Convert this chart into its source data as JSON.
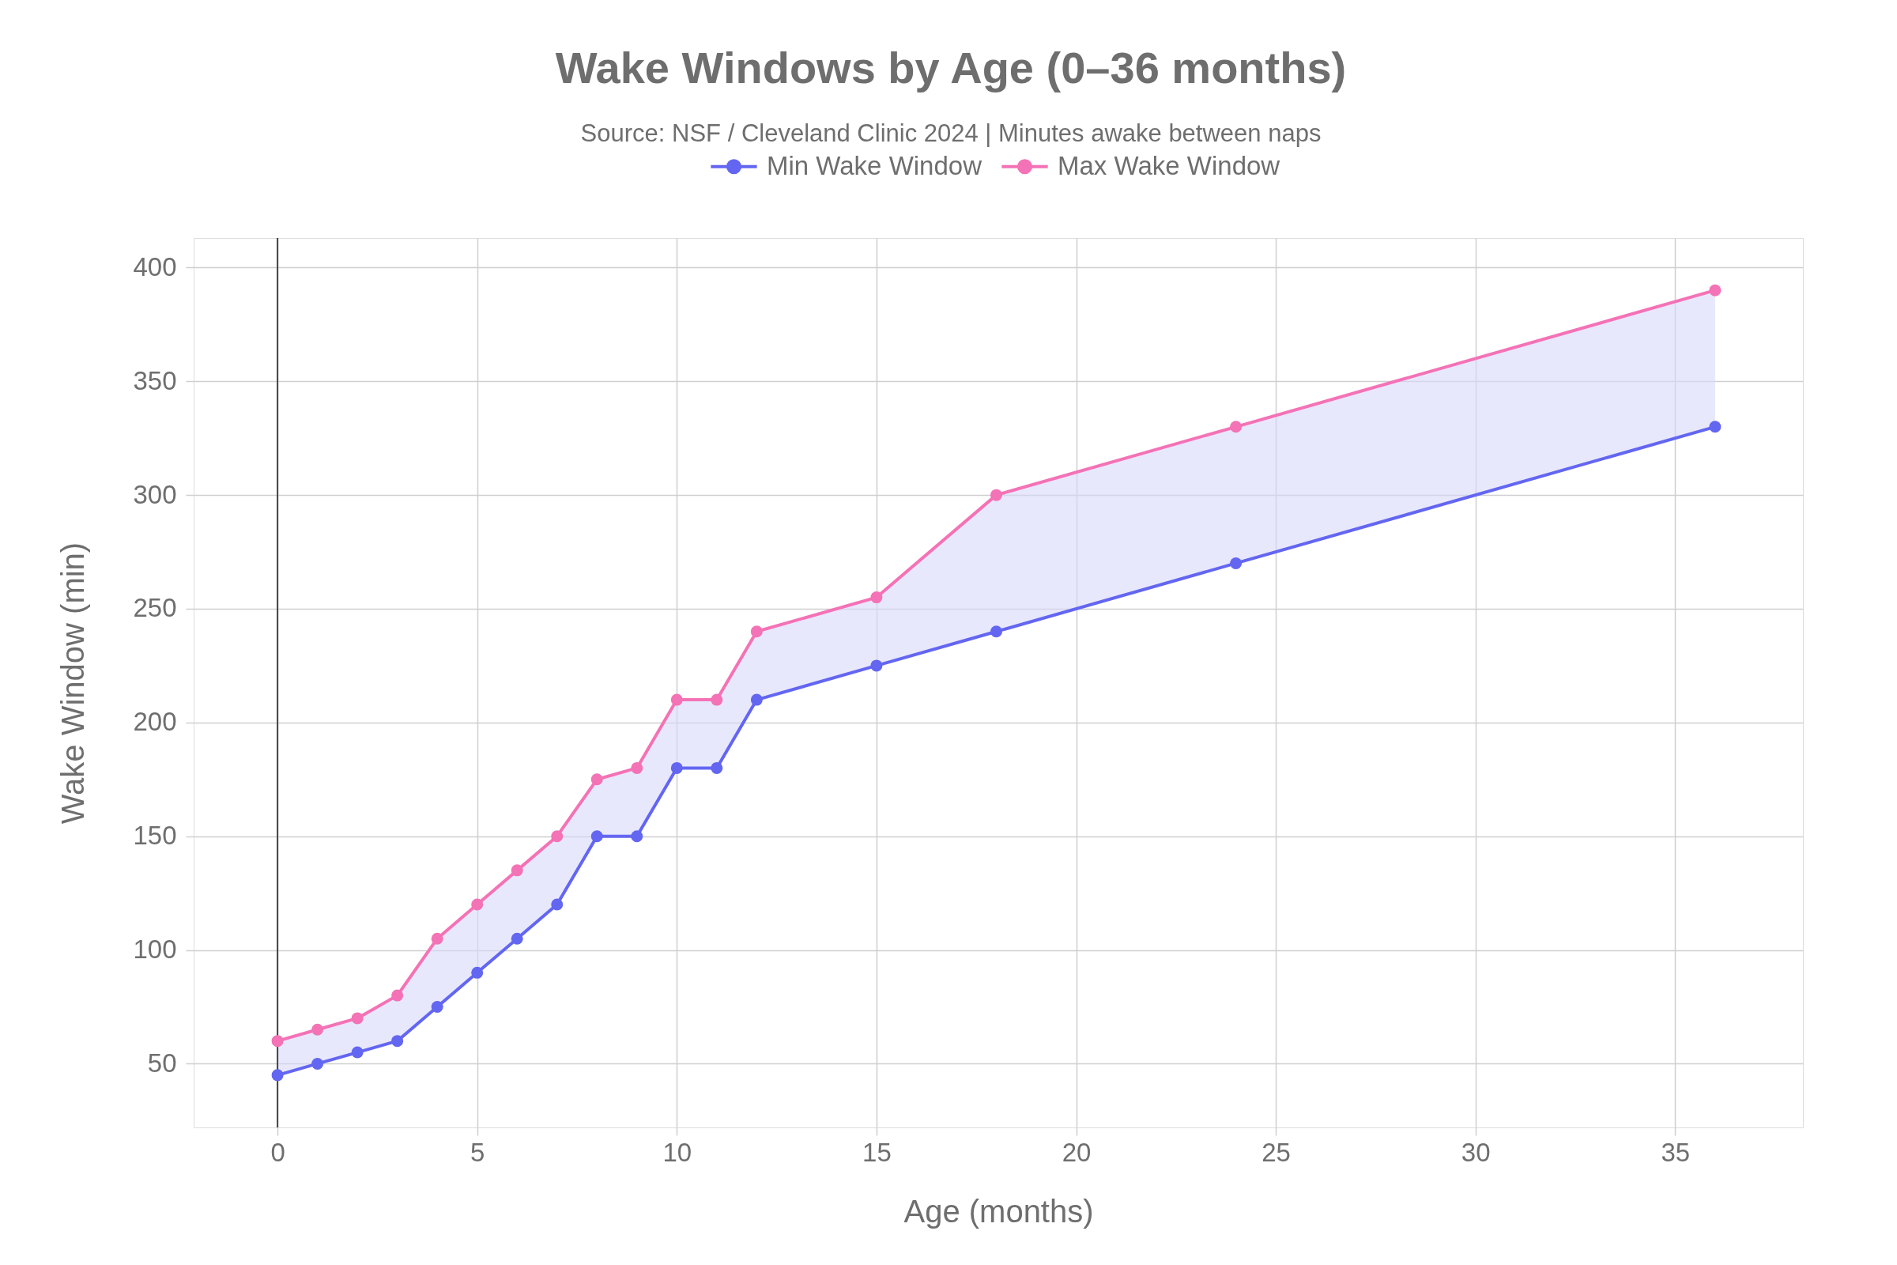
{
  "chart_data": {
    "type": "line",
    "title": "Wake Windows by Age (0–36 months)",
    "subtitle": "Source: NSF / Cleveland Clinic 2024 | Minutes awake between naps",
    "xlabel": "Age (months)",
    "ylabel": "Wake Window (min)",
    "x": [
      0,
      1,
      2,
      3,
      4,
      5,
      6,
      7,
      8,
      9,
      10,
      11,
      12,
      15,
      18,
      24,
      36
    ],
    "series": [
      {
        "name": "Min Wake Window",
        "color": "#6366f1",
        "values": [
          45,
          50,
          55,
          60,
          75,
          90,
          105,
          120,
          150,
          150,
          180,
          180,
          210,
          225,
          240,
          270,
          330
        ],
        "lower": [
          45,
          50,
          55,
          60,
          75,
          90,
          105,
          120,
          150,
          150,
          180,
          180,
          210,
          225,
          240,
          270,
          330
        ],
        "upper": [
          60,
          65,
          70,
          80,
          105,
          120,
          135,
          150,
          175,
          180,
          210,
          210,
          240,
          255,
          300,
          330,
          390
        ]
      },
      {
        "name": "Max Wake Window",
        "color": "#f472b6",
        "values": [
          60,
          65,
          70,
          80,
          105,
          120,
          135,
          150,
          175,
          180,
          210,
          210,
          240,
          255,
          300,
          330,
          390
        ]
      }
    ],
    "xlim": [
      -2.1,
      38.2
    ],
    "ylim": [
      22,
      413
    ],
    "xticks": [
      0,
      5,
      10,
      15,
      20,
      25,
      30,
      35
    ],
    "yticks": [
      50,
      100,
      150,
      200,
      250,
      300,
      350,
      400
    ],
    "ref_lines": [
      {
        "axis": "x",
        "value": 0,
        "color": "#444444"
      }
    ],
    "grid": true,
    "legend": "top",
    "marker": "circle",
    "line_style": "solid"
  }
}
